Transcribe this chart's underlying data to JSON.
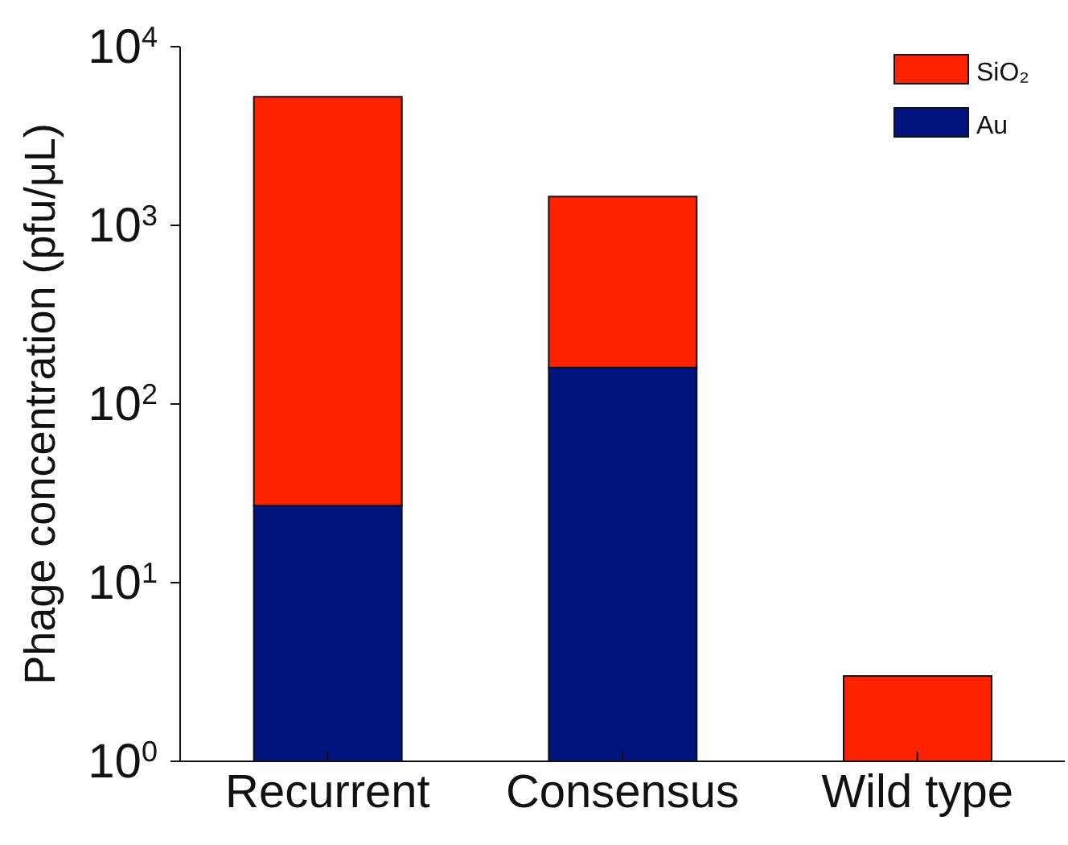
{
  "chart_data": {
    "type": "bar",
    "ylabel": "Phage concentration (pfu/μL)",
    "categories": [
      "Recurrent",
      "Consensus",
      "Wild type"
    ],
    "series": [
      {
        "name": "Au",
        "color": "#00137f",
        "values": [
          27,
          160,
          null
        ]
      },
      {
        "name": "SiO₂",
        "color": "#ff2200",
        "values": [
          5220,
          1290,
          3
        ]
      }
    ],
    "stacked": true,
    "log": true,
    "ylim": [
      1,
      10000
    ],
    "yticks": [
      {
        "value": 1,
        "label": "10$^{0}$"
      },
      {
        "value": 10,
        "label": "10$^{1}$"
      },
      {
        "value": 100,
        "label": "10$^{2}$"
      },
      {
        "value": 1000,
        "label": "10$^{3}$"
      },
      {
        "value": 10000,
        "label": "10$^{4}$"
      }
    ],
    "grid": false,
    "legend": "top right"
  }
}
